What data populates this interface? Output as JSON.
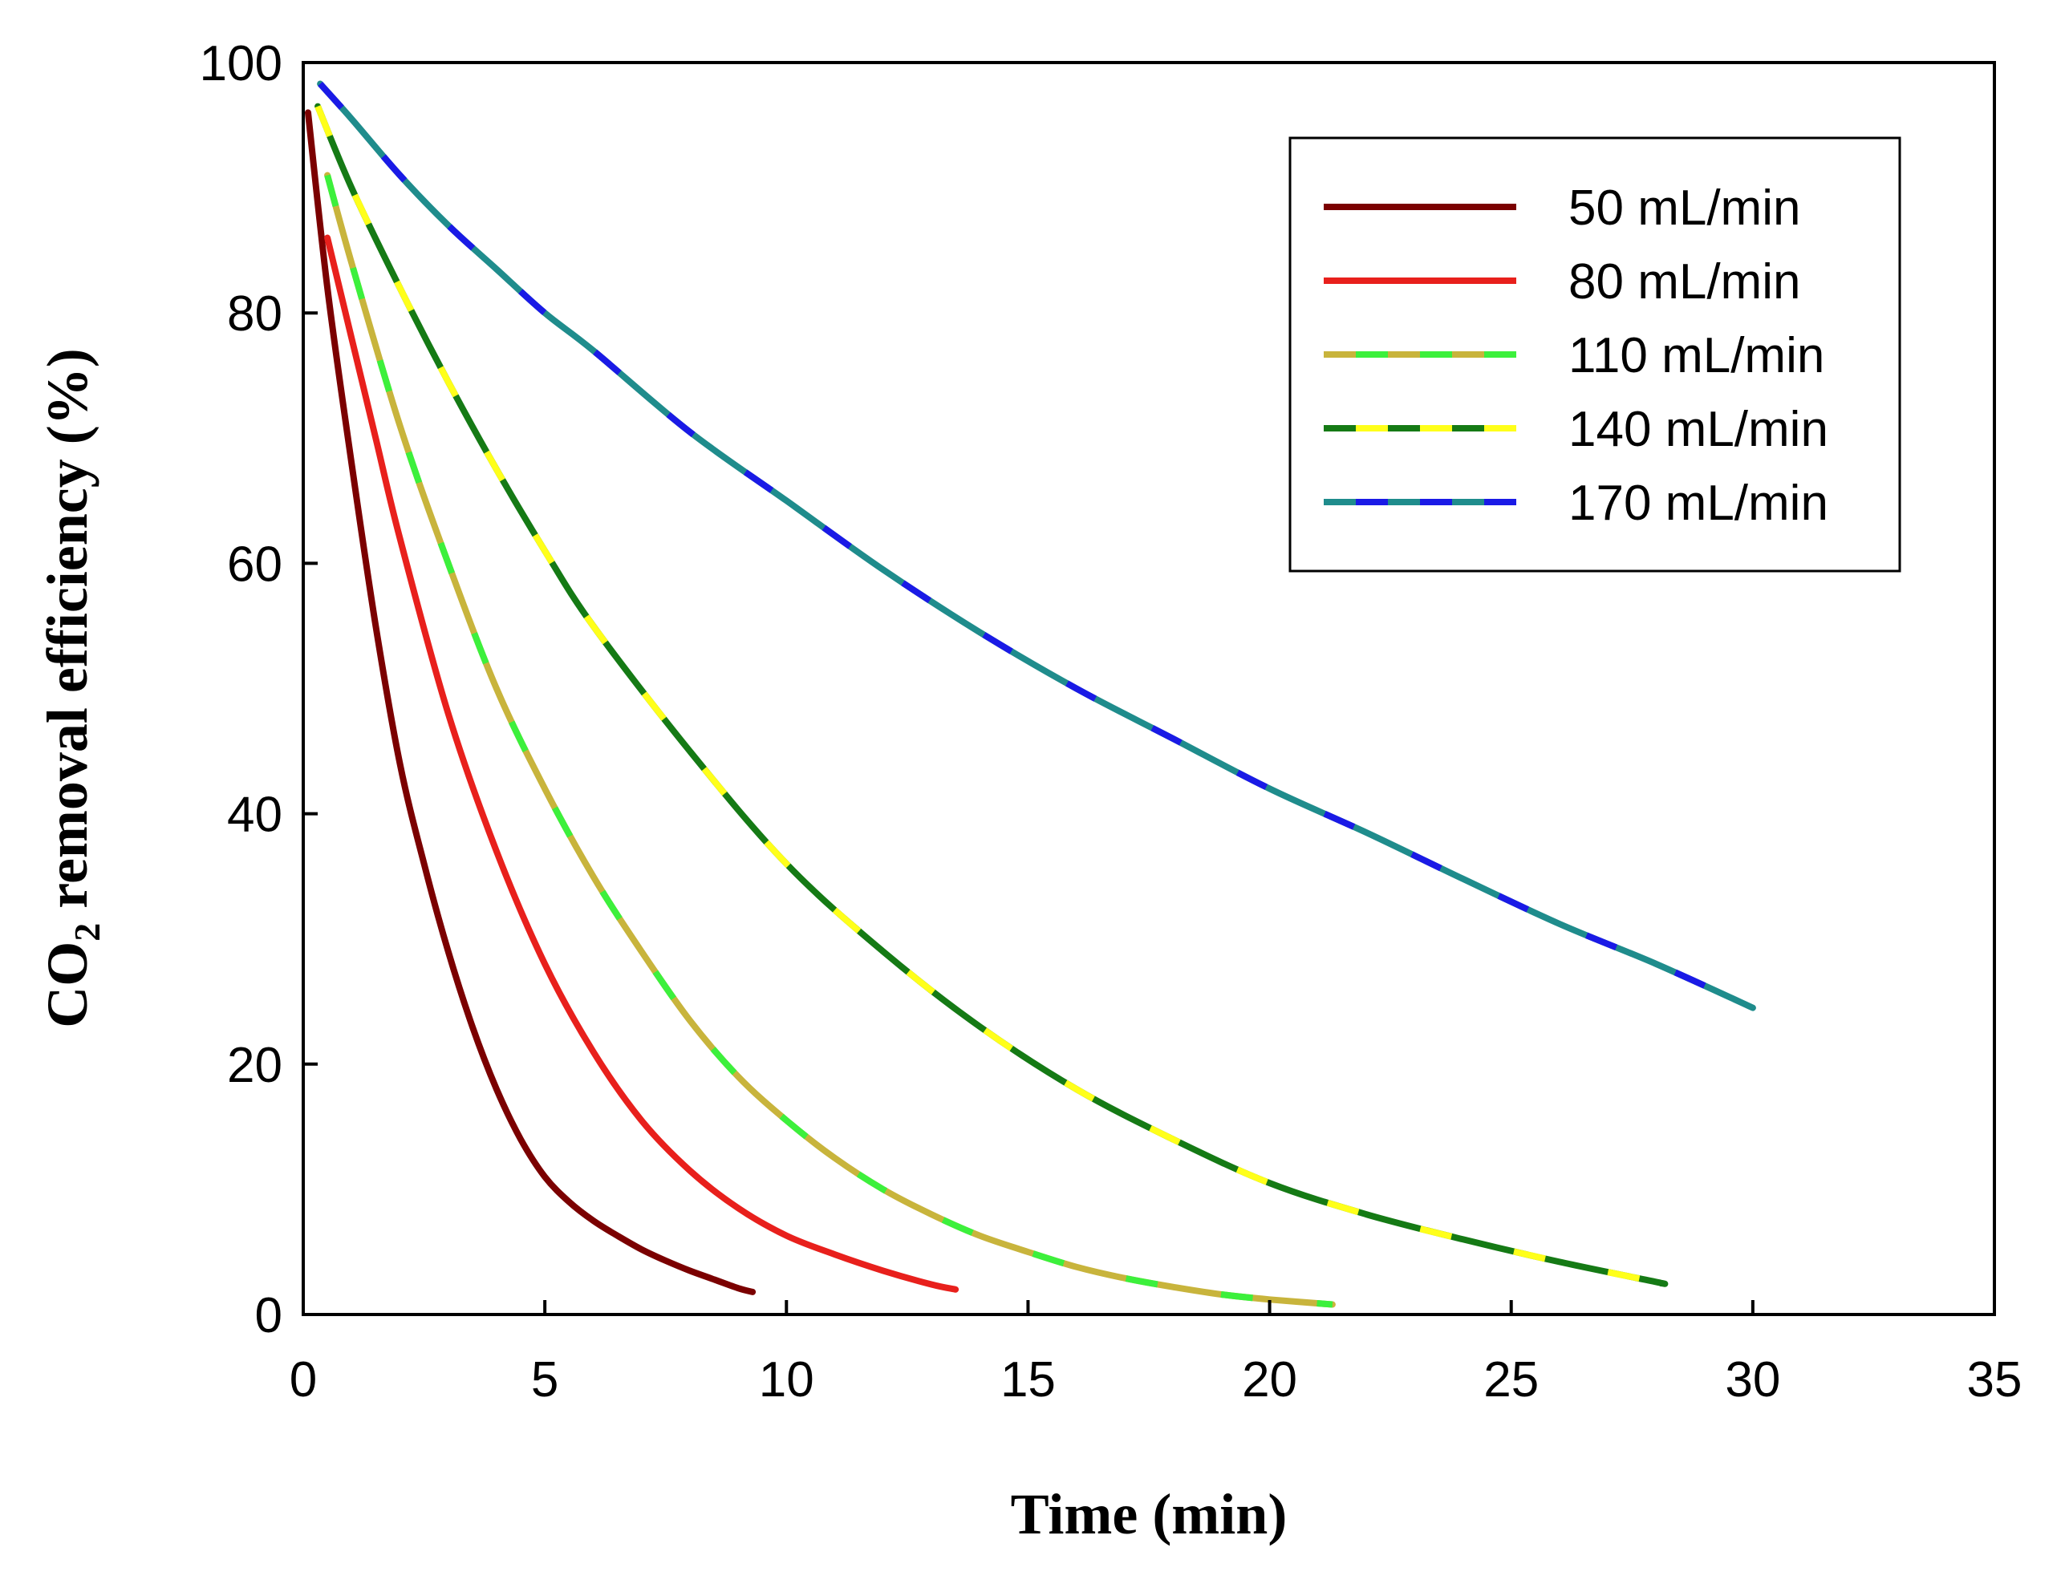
{
  "chart_data": {
    "type": "line",
    "title": "",
    "xlabel": "Time (min)",
    "ylabel": {
      "prefix": "CO",
      "subscript": "2",
      "suffix": " removal efficiency (%)"
    },
    "xlim": [
      0,
      35
    ],
    "ylim": [
      0,
      100
    ],
    "xticks": [
      0,
      5,
      10,
      15,
      20,
      25,
      30,
      35
    ],
    "yticks": [
      0,
      20,
      40,
      60,
      80,
      100
    ],
    "xtick_labels": [
      "0",
      "5",
      "10",
      "15",
      "20",
      "25",
      "30",
      "35"
    ],
    "ytick_labels": [
      "0",
      "20",
      "40",
      "60",
      "80",
      "100"
    ],
    "grid": false,
    "legend_position": "top-right",
    "series": [
      {
        "name": "50 mL/min",
        "color": "#7b0000",
        "dash_color": null,
        "x": [
          0.1,
          0.5,
          1.0,
          1.5,
          2.0,
          2.5,
          3.0,
          3.5,
          4.0,
          4.5,
          5.0,
          5.5,
          6.0,
          6.5,
          7.0,
          7.5,
          8.0,
          8.5,
          9.0,
          9.3
        ],
        "y": [
          96,
          82,
          68,
          55,
          44,
          36,
          29,
          23,
          18,
          14,
          11,
          9,
          7.5,
          6.3,
          5.2,
          4.3,
          3.5,
          2.8,
          2.1,
          1.8
        ]
      },
      {
        "name": "80 mL/min",
        "color": "#e8201c",
        "dash_color": null,
        "x": [
          0.5,
          1.0,
          1.5,
          2.0,
          3.0,
          4.0,
          5.0,
          6.0,
          7.0,
          8.0,
          9.0,
          10.0,
          11.0,
          12.0,
          13.0,
          13.5
        ],
        "y": [
          86,
          78,
          70,
          62,
          48,
          37,
          28,
          21,
          15.5,
          11.5,
          8.5,
          6.3,
          4.8,
          3.5,
          2.4,
          2.0
        ]
      },
      {
        "name": "110 mL/min",
        "color": "#c8b43c",
        "dash_color": "#3cf03c",
        "x": [
          0.5,
          1.0,
          2.0,
          3.0,
          4.0,
          5.0,
          6.0,
          7.0,
          8.0,
          9.0,
          10.0,
          11.0,
          12.0,
          13.0,
          14.0,
          15.0,
          16.0,
          17.0,
          18.0,
          19.0,
          20.0,
          21.3
        ],
        "y": [
          91,
          84,
          71,
          60,
          50,
          42,
          35,
          29,
          23.5,
          19,
          15.5,
          12.5,
          10,
          8,
          6.3,
          5,
          3.8,
          2.9,
          2.2,
          1.6,
          1.2,
          0.8
        ]
      },
      {
        "name": "140 mL/min",
        "color": "#157a15",
        "dash_color": "#ffff1a",
        "x": [
          0.3,
          1.0,
          2.0,
          3.0,
          4.0,
          5.0,
          6.0,
          8.0,
          10.0,
          12.0,
          14.0,
          16.0,
          18.0,
          20.0,
          22.0,
          24.0,
          26.0,
          28.0,
          28.1
        ],
        "y": [
          96.5,
          90,
          82,
          74.5,
          67.5,
          61,
          55,
          45,
          36,
          29,
          23,
          18,
          14,
          10.5,
          8,
          6,
          4.2,
          2.6,
          2.5
        ]
      },
      {
        "name": "170 mL/min",
        "color": "#1f8c8c",
        "dash_color": "#1a1ae6",
        "x": [
          0.35,
          1,
          2,
          3,
          4,
          5,
          6,
          8,
          10,
          12,
          14,
          16,
          18,
          20,
          22,
          24,
          26,
          28,
          30
        ],
        "y": [
          98.3,
          95.5,
          91,
          87,
          83.5,
          80,
          77,
          70.5,
          65,
          59.5,
          54.5,
          50,
          46,
          42,
          38.5,
          34.8,
          31.2,
          28,
          24.5
        ]
      }
    ]
  }
}
